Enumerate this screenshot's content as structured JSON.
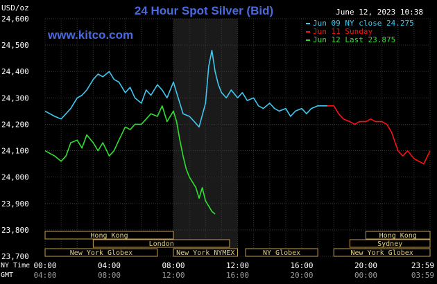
{
  "header": {
    "title": "24 Hour Spot Silver (Bid)",
    "units": "USD/oz",
    "datetime": "June 12, 2023 10:38",
    "source": "www.kitco.com"
  },
  "colors": {
    "background": "#000000",
    "title": "#4a6ae0",
    "source": "#4a6ae0",
    "grid": "#3a3a3a",
    "text": "#ffffff",
    "session_fill": "#1a1a1a",
    "market_box_border": "#c8a050",
    "market_box_text": "#e0d080",
    "series_ny_close": "#3fc8f0",
    "series_sunday": "#ff1010",
    "series_last": "#30e030"
  },
  "chart_data": {
    "type": "line",
    "x_unit": "hours (NY Time)",
    "xlim": [
      0,
      24
    ],
    "ylim": [
      23.7,
      24.6
    ],
    "y_ticks": [
      "24,600",
      "24,500",
      "24,400",
      "24,300",
      "24,200",
      "24,100",
      "24,000",
      "23,900",
      "23,800",
      "23,700"
    ],
    "y_tick_values": [
      24.6,
      24.5,
      24.4,
      24.3,
      24.2,
      24.1,
      24.0,
      23.9,
      23.8,
      23.7
    ],
    "x_ticks_ny": [
      "00:00",
      "04:00",
      "08:00",
      "12:00",
      "16:00",
      "20:00",
      "23:59"
    ],
    "x_ticks_gmt": [
      "04:00",
      "08:00",
      "12:00",
      "16:00",
      "20:00",
      "00:00",
      "03:59"
    ],
    "x_tick_values": [
      0,
      4,
      8,
      12,
      16,
      20,
      24
    ],
    "row_label_ny": "NY Time",
    "row_label_gmt": "GMT",
    "grid": true,
    "highlight_session": [
      8,
      12
    ],
    "legend": {
      "placement": "top-right",
      "entries": [
        "Jun 09 NY close 24.275",
        "Jun 11 Sunday",
        "Jun 12 Last 23.875"
      ]
    },
    "series": [
      {
        "name": "Jun 09 NY close 24.275",
        "color": "#3fc8f0",
        "x": [
          0,
          0.3,
          0.6,
          1,
          1.3,
          1.6,
          2,
          2.3,
          2.6,
          3,
          3.3,
          3.6,
          4,
          4.3,
          4.6,
          5,
          5.3,
          5.6,
          6,
          6.3,
          6.6,
          7,
          7.3,
          7.6,
          8,
          8.3,
          8.6,
          9,
          9.3,
          9.6,
          10,
          10.2,
          10.4,
          10.6,
          10.8,
          11,
          11.3,
          11.6,
          12,
          12.3,
          12.6,
          13,
          13.3,
          13.6,
          14,
          14.3,
          14.6,
          15,
          15.3,
          15.6,
          16,
          16.3,
          16.6,
          17,
          17.3,
          17.6
        ],
        "values": [
          24.25,
          24.24,
          24.23,
          24.22,
          24.24,
          24.26,
          24.3,
          24.31,
          24.33,
          24.37,
          24.39,
          24.38,
          24.4,
          24.37,
          24.36,
          24.32,
          24.34,
          24.3,
          24.28,
          24.33,
          24.31,
          24.35,
          24.33,
          24.3,
          24.36,
          24.3,
          24.24,
          24.23,
          24.21,
          24.19,
          24.28,
          24.42,
          24.48,
          24.4,
          24.35,
          24.32,
          24.3,
          24.33,
          24.3,
          24.32,
          24.29,
          24.3,
          24.27,
          24.26,
          24.28,
          24.26,
          24.25,
          24.26,
          24.23,
          24.25,
          24.26,
          24.24,
          24.26,
          24.27,
          24.27,
          24.27
        ]
      },
      {
        "name": "Jun 11 Sunday",
        "color": "#ff1010",
        "x": [
          17.6,
          18,
          18.3,
          18.6,
          19,
          19.3,
          19.6,
          20,
          20.3,
          20.6,
          21,
          21.3,
          21.6,
          22,
          22.3,
          22.6,
          23,
          23.3,
          23.6,
          24
        ],
        "values": [
          24.27,
          24.27,
          24.24,
          24.22,
          24.21,
          24.2,
          24.21,
          24.21,
          24.22,
          24.21,
          24.21,
          24.2,
          24.17,
          24.1,
          24.08,
          24.1,
          24.07,
          24.06,
          24.05,
          24.1
        ]
      },
      {
        "name": "Jun 12 Last 23.875",
        "color": "#30e030",
        "x": [
          0,
          0.3,
          0.6,
          1,
          1.3,
          1.6,
          2,
          2.3,
          2.6,
          3,
          3.3,
          3.6,
          4,
          4.3,
          4.6,
          5,
          5.3,
          5.6,
          6,
          6.3,
          6.6,
          7,
          7.3,
          7.6,
          8,
          8.2,
          8.4,
          8.6,
          8.8,
          9,
          9.2,
          9.4,
          9.6,
          9.8,
          10,
          10.2,
          10.4,
          10.6
        ],
        "values": [
          24.1,
          24.09,
          24.08,
          24.06,
          24.08,
          24.13,
          24.14,
          24.11,
          24.16,
          24.13,
          24.1,
          24.13,
          24.08,
          24.1,
          24.14,
          24.19,
          24.18,
          24.2,
          24.2,
          24.22,
          24.24,
          24.23,
          24.27,
          24.21,
          24.25,
          24.21,
          24.14,
          24.08,
          24.03,
          24.0,
          23.98,
          23.96,
          23.92,
          23.96,
          23.91,
          23.89,
          23.87,
          23.86
        ]
      }
    ]
  },
  "markets": {
    "row1": [
      {
        "label": "Hong Kong",
        "start": 0,
        "end": 8
      },
      {
        "label": "Hong Kong",
        "start": 20,
        "end": 24
      }
    ],
    "row2": [
      {
        "label": "London",
        "start": 3,
        "end": 11.5
      },
      {
        "label": "Sydney",
        "start": 19,
        "end": 24
      }
    ],
    "row3": [
      {
        "label": "New York Globex",
        "start": 0,
        "end": 7
      },
      {
        "label": "New York NYMEX",
        "start": 8,
        "end": 12
      },
      {
        "label": "NY Globex",
        "start": 12.5,
        "end": 17
      },
      {
        "label": "New York Globex",
        "start": 18,
        "end": 24
      }
    ]
  }
}
